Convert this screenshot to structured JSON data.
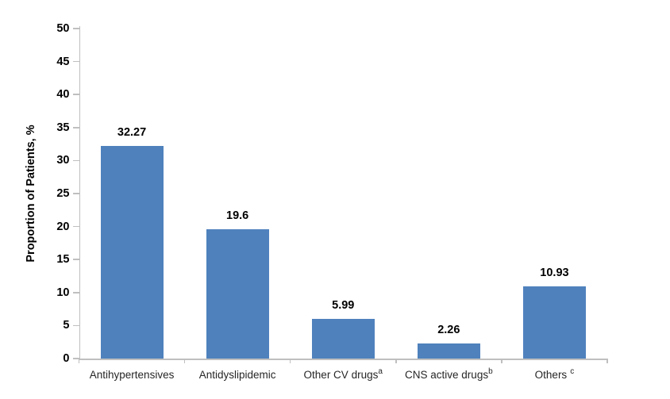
{
  "chart_data": {
    "type": "bar",
    "title": "",
    "xlabel": "",
    "ylabel": "Proportion of Patients, %",
    "ylim": [
      0,
      50
    ],
    "ytick_step": 5,
    "grid": false,
    "legend": false,
    "bar_color": "#4F81BD",
    "axis_color": "#BFBFBF",
    "categories": [
      {
        "label": "Antihypertensives",
        "sup": ""
      },
      {
        "label": "Antidyslipidemic",
        "sup": ""
      },
      {
        "label": "Other CV drugs",
        "sup": "a"
      },
      {
        "label": "CNS active drugs",
        "sup": "b"
      },
      {
        "label": "Others",
        "sup": "c",
        "sup_gap": true
      }
    ],
    "values": [
      32.27,
      19.6,
      5.99,
      2.26,
      10.93
    ],
    "value_labels": [
      "32.27",
      "19.6",
      "5.99",
      "2.26",
      "10.93"
    ]
  }
}
